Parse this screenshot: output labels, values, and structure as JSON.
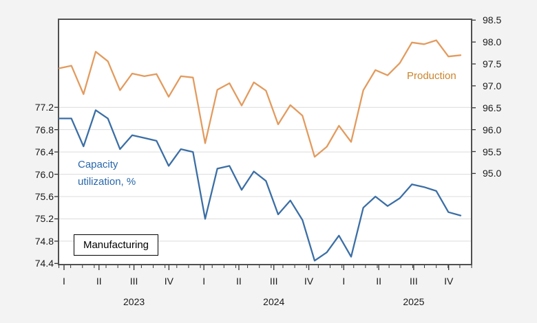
{
  "figure": {
    "background": "#f3f3f3",
    "plot_background": "#ffffff",
    "plot_border_color": "#4f4f4f",
    "grid_color": "#dcdcdc",
    "tick_color": "#333333",
    "tick_label_color": "#1a1a1a",
    "capacity_line_color": "#3b6ea5",
    "production_line_color": "#e29b5e",
    "capacity_label_color": "#2767ac",
    "production_label_color": "#c9842d"
  },
  "annotations": {
    "capacity_label_line1": "Capacity",
    "capacity_label_line2": "utilization, %",
    "production_label": "Production",
    "box_label": "Manufacturing"
  },
  "chart_data": {
    "type": "line",
    "title": "",
    "xlabel": "",
    "grid": "horizontal",
    "x_unit": "month",
    "months": [
      "2023-01",
      "2023-02",
      "2023-03",
      "2023-04",
      "2023-05",
      "2023-06",
      "2023-07",
      "2023-08",
      "2023-09",
      "2023-10",
      "2023-11",
      "2023-12",
      "2024-01",
      "2024-02",
      "2024-03",
      "2024-04",
      "2024-05",
      "2024-06",
      "2024-07",
      "2024-08",
      "2024-09",
      "2024-10",
      "2024-11",
      "2024-12",
      "2025-01",
      "2025-02",
      "2025-03",
      "2025-04",
      "2025-05",
      "2025-06",
      "2025-07",
      "2025-08",
      "2025-09",
      "2025-10"
    ],
    "quarter_labels": [
      "I",
      "II",
      "III",
      "IV",
      "I",
      "II",
      "III",
      "IV",
      "I",
      "II",
      "III",
      "IV"
    ],
    "year_labels": [
      "2023",
      "2024",
      "2025"
    ],
    "left_axis": {
      "series": "Capacity utilization, %",
      "tick_labels": [
        "77.2",
        "76.8",
        "76.4",
        "76.0",
        "75.6",
        "75.2",
        "74.8",
        "74.4"
      ],
      "range": [
        74.38,
        78.78
      ]
    },
    "right_axis": {
      "series": "Production",
      "tick_labels": [
        "98.5",
        "98.0",
        "97.5",
        "97.0",
        "96.5",
        "96.0",
        "95.5",
        "95.0"
      ],
      "range": [
        92.92,
        98.52
      ]
    },
    "series": [
      {
        "name": "Capacity utilization, %",
        "axis": "left",
        "color": "#3b6ea5",
        "values": [
          77.0,
          77.0,
          76.5,
          77.15,
          77.0,
          76.45,
          76.7,
          76.65,
          76.6,
          76.15,
          76.45,
          76.4,
          75.2,
          76.1,
          76.15,
          75.72,
          76.05,
          75.88,
          75.28,
          75.53,
          75.18,
          74.45,
          74.6,
          74.9,
          74.52,
          75.4,
          75.6,
          75.43,
          75.57,
          75.82,
          75.77,
          75.7,
          75.32,
          75.26
        ]
      },
      {
        "name": "Production",
        "axis": "right",
        "color": "#e29b5e",
        "values": [
          97.4,
          97.46,
          96.81,
          97.78,
          97.56,
          96.9,
          97.28,
          97.22,
          97.27,
          96.75,
          97.22,
          97.19,
          95.69,
          96.91,
          97.06,
          96.55,
          97.08,
          96.89,
          96.12,
          96.56,
          96.32,
          95.38,
          95.61,
          96.09,
          95.72,
          96.9,
          97.36,
          97.24,
          97.52,
          97.99,
          97.95,
          98.04,
          97.67,
          97.7
        ]
      }
    ]
  }
}
